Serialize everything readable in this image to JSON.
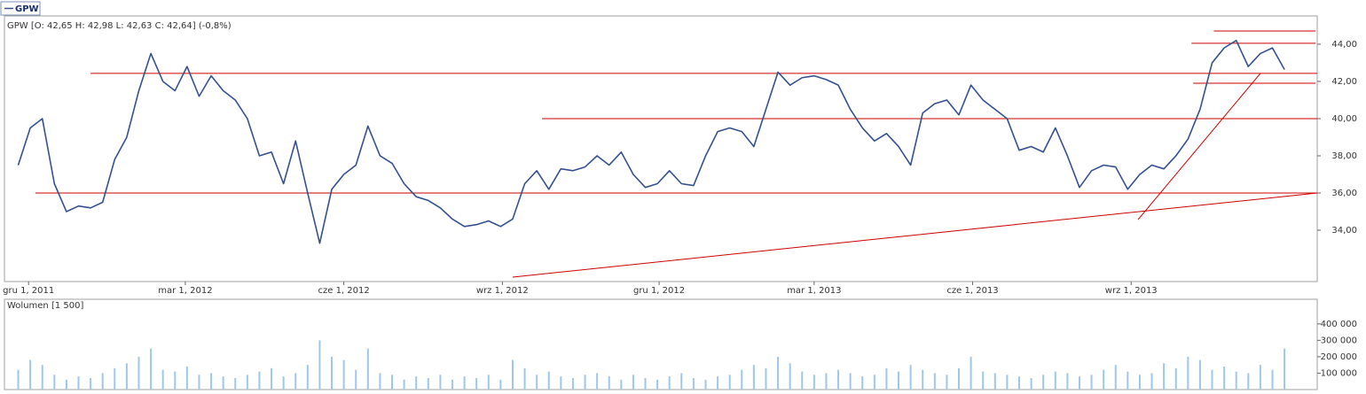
{
  "chart_data": [
    {
      "type": "line",
      "title": "GPW [O: 42,65  H: 42,98  L: 42,63  C: 42,64] (-0,8%)",
      "x": [
        "2011-11-25",
        "2011-12-02",
        "2011-12-09",
        "2011-12-16",
        "2011-12-23",
        "2011-12-30",
        "2012-01-06",
        "2012-01-13",
        "2012-01-20",
        "2012-01-27",
        "2012-02-03",
        "2012-02-10",
        "2012-02-17",
        "2012-02-24",
        "2012-03-02",
        "2012-03-09",
        "2012-03-16",
        "2012-03-23",
        "2012-03-30",
        "2012-04-06",
        "2012-04-13",
        "2012-04-20",
        "2012-04-27",
        "2012-05-04",
        "2012-05-11",
        "2012-05-18",
        "2012-05-25",
        "2012-06-01",
        "2012-06-08",
        "2012-06-15",
        "2012-06-22",
        "2012-06-29",
        "2012-07-06",
        "2012-07-13",
        "2012-07-20",
        "2012-07-27",
        "2012-08-03",
        "2012-08-10",
        "2012-08-17",
        "2012-08-24",
        "2012-08-31",
        "2012-09-07",
        "2012-09-14",
        "2012-09-21",
        "2012-09-28",
        "2012-10-05",
        "2012-10-12",
        "2012-10-19",
        "2012-10-26",
        "2012-11-02",
        "2012-11-09",
        "2012-11-16",
        "2012-11-23",
        "2012-11-30",
        "2012-12-07",
        "2012-12-14",
        "2012-12-21",
        "2012-12-28",
        "2013-01-04",
        "2013-01-11",
        "2013-01-18",
        "2013-01-25",
        "2013-02-01",
        "2013-02-08",
        "2013-02-15",
        "2013-02-22",
        "2013-03-01",
        "2013-03-08",
        "2013-03-15",
        "2013-03-22",
        "2013-03-29",
        "2013-04-05",
        "2013-04-12",
        "2013-04-19",
        "2013-04-26",
        "2013-05-03",
        "2013-05-10",
        "2013-05-17",
        "2013-05-24",
        "2013-05-31",
        "2013-06-07",
        "2013-06-14",
        "2013-06-21",
        "2013-06-28",
        "2013-07-05",
        "2013-07-12",
        "2013-07-19",
        "2013-07-26",
        "2013-08-02",
        "2013-08-09",
        "2013-08-16",
        "2013-08-23",
        "2013-08-30",
        "2013-09-06",
        "2013-09-13",
        "2013-09-20",
        "2013-09-27",
        "2013-10-04",
        "2013-10-11",
        "2013-10-18",
        "2013-10-25",
        "2013-11-01",
        "2013-11-08",
        "2013-11-15",
        "2013-11-22",
        "2013-11-29"
      ],
      "series": [
        {
          "name": "GPW",
          "color": "#34508f",
          "values": [
            37.5,
            39.5,
            40.0,
            36.5,
            35.0,
            35.3,
            35.2,
            35.5,
            37.8,
            39.0,
            41.5,
            43.5,
            42.0,
            41.5,
            42.8,
            41.2,
            42.3,
            41.5,
            41.0,
            40.0,
            38.0,
            38.2,
            36.5,
            38.8,
            36.0,
            33.3,
            36.2,
            37.0,
            37.5,
            39.6,
            38.0,
            37.6,
            36.5,
            35.8,
            35.6,
            35.2,
            34.6,
            34.2,
            34.3,
            34.5,
            34.2,
            34.6,
            36.5,
            37.2,
            36.2,
            37.3,
            37.2,
            37.4,
            38.0,
            37.5,
            38.2,
            37.0,
            36.3,
            36.5,
            37.2,
            36.5,
            36.4,
            38.0,
            39.3,
            39.5,
            39.3,
            38.5,
            40.5,
            42.5,
            41.8,
            42.2,
            42.3,
            42.1,
            41.8,
            40.5,
            39.5,
            38.8,
            39.2,
            38.5,
            37.5,
            40.3,
            40.8,
            41.0,
            40.2,
            41.8,
            41.0,
            40.5,
            40.0,
            38.3,
            38.5,
            38.2,
            39.5,
            38.0,
            36.3,
            37.2,
            37.5,
            37.4,
            36.2,
            37.0,
            37.5,
            37.3,
            38.0,
            38.9,
            40.5,
            43.0,
            43.8,
            44.2,
            42.8,
            43.5,
            43.8,
            42.64
          ]
        }
      ],
      "xlim": [
        "2011-11-17",
        "2013-12-18"
      ],
      "xticks": [
        {
          "value": "2011-12-01",
          "label": "gru 1, 2011"
        },
        {
          "value": "2012-03-01",
          "label": "mar 1, 2012"
        },
        {
          "value": "2012-06-01",
          "label": "cze 1, 2012"
        },
        {
          "value": "2012-09-01",
          "label": "wrz 1, 2012"
        },
        {
          "value": "2012-12-01",
          "label": "gru 1, 2012"
        },
        {
          "value": "2013-03-01",
          "label": "mar 1, 2013"
        },
        {
          "value": "2013-06-01",
          "label": "cze 1, 2013"
        },
        {
          "value": "2013-09-01",
          "label": "wrz 1, 2013"
        }
      ],
      "ylim": [
        31.24,
        45.52
      ],
      "yticks": [
        {
          "value": 34,
          "label": "34,00"
        },
        {
          "value": 36,
          "label": "36,00"
        },
        {
          "value": 38,
          "label": "38,00"
        },
        {
          "value": 40,
          "label": "40,00"
        },
        {
          "value": 42,
          "label": "42,00"
        },
        {
          "value": 44,
          "label": "44,00"
        }
      ],
      "line_color": "#cc0000",
      "lines": [
        {
          "x": [
            "2012-01-06",
            "2013-12-18"
          ],
          "y": [
            42.43,
            42.43
          ]
        },
        {
          "x": [
            "2012-09-24",
            "2013-12-18"
          ],
          "y": [
            40.0,
            40.0
          ]
        },
        {
          "x": [
            "2011-12-05",
            "2013-12-18"
          ],
          "y": [
            36.0,
            36.0
          ]
        },
        {
          "x": [
            "2013-10-07",
            "2013-12-17"
          ],
          "y": [
            41.9,
            41.9
          ]
        },
        {
          "x": [
            "2013-10-06",
            "2013-12-17"
          ],
          "y": [
            44.05,
            44.05
          ]
        },
        {
          "x": [
            "2013-10-19",
            "2013-12-17"
          ],
          "y": [
            44.71,
            44.71
          ]
        },
        {
          "x": [
            "2012-09-07",
            "2013-12-18"
          ],
          "y": [
            31.48,
            36.0
          ]
        },
        {
          "x": [
            "2013-09-05",
            "2013-11-15"
          ],
          "y": [
            34.57,
            42.43
          ]
        }
      ]
    },
    {
      "type": "bar",
      "title": "Wolumen [1 500]",
      "x": [
        "2011-11-25",
        "2011-12-02",
        "2011-12-09",
        "2011-12-16",
        "2011-12-23",
        "2011-12-30",
        "2012-01-06",
        "2012-01-13",
        "2012-01-20",
        "2012-01-27",
        "2012-02-03",
        "2012-02-10",
        "2012-02-17",
        "2012-02-24",
        "2012-03-02",
        "2012-03-09",
        "2012-03-16",
        "2012-03-23",
        "2012-03-30",
        "2012-04-06",
        "2012-04-13",
        "2012-04-20",
        "2012-04-27",
        "2012-05-04",
        "2012-05-11",
        "2012-05-18",
        "2012-05-25",
        "2012-06-01",
        "2012-06-08",
        "2012-06-15",
        "2012-06-22",
        "2012-06-29",
        "2012-07-06",
        "2012-07-13",
        "2012-07-20",
        "2012-07-27",
        "2012-08-03",
        "2012-08-10",
        "2012-08-17",
        "2012-08-24",
        "2012-08-31",
        "2012-09-07",
        "2012-09-14",
        "2012-09-21",
        "2012-09-28",
        "2012-10-05",
        "2012-10-12",
        "2012-10-19",
        "2012-10-26",
        "2012-11-02",
        "2012-11-09",
        "2012-11-16",
        "2012-11-23",
        "2012-11-30",
        "2012-12-07",
        "2012-12-14",
        "2012-12-21",
        "2012-12-28",
        "2013-01-04",
        "2013-01-11",
        "2013-01-18",
        "2013-01-25",
        "2013-02-01",
        "2013-02-08",
        "2013-02-15",
        "2013-02-22",
        "2013-03-01",
        "2013-03-08",
        "2013-03-15",
        "2013-03-22",
        "2013-03-29",
        "2013-04-05",
        "2013-04-12",
        "2013-04-19",
        "2013-04-26",
        "2013-05-03",
        "2013-05-10",
        "2013-05-17",
        "2013-05-24",
        "2013-05-31",
        "2013-06-07",
        "2013-06-14",
        "2013-06-21",
        "2013-06-28",
        "2013-07-05",
        "2013-07-12",
        "2013-07-19",
        "2013-07-26",
        "2013-08-02",
        "2013-08-09",
        "2013-08-16",
        "2013-08-23",
        "2013-08-30",
        "2013-09-06",
        "2013-09-13",
        "2013-09-20",
        "2013-09-27",
        "2013-10-04",
        "2013-10-11",
        "2013-10-18",
        "2013-10-25",
        "2013-11-01",
        "2013-11-08",
        "2013-11-15",
        "2013-11-22",
        "2013-11-29"
      ],
      "color": "#9fc7e8",
      "values": [
        120000,
        180000,
        150000,
        90000,
        60000,
        80000,
        70000,
        100000,
        130000,
        160000,
        200000,
        250000,
        120000,
        110000,
        140000,
        90000,
        100000,
        80000,
        70000,
        90000,
        110000,
        130000,
        80000,
        100000,
        150000,
        300000,
        200000,
        180000,
        120000,
        250000,
        100000,
        90000,
        60000,
        80000,
        70000,
        90000,
        60000,
        80000,
        70000,
        90000,
        60000,
        180000,
        130000,
        90000,
        110000,
        80000,
        70000,
        90000,
        100000,
        80000,
        60000,
        90000,
        70000,
        60000,
        80000,
        100000,
        70000,
        60000,
        80000,
        90000,
        120000,
        150000,
        130000,
        200000,
        160000,
        110000,
        90000,
        100000,
        120000,
        100000,
        80000,
        90000,
        130000,
        110000,
        150000,
        120000,
        100000,
        90000,
        130000,
        200000,
        110000,
        100000,
        90000,
        80000,
        70000,
        90000,
        110000,
        100000,
        80000,
        90000,
        120000,
        150000,
        110000,
        90000,
        100000,
        160000,
        130000,
        200000,
        180000,
        120000,
        140000,
        110000,
        100000,
        150000,
        120000,
        250000
      ],
      "xlim": [
        "2011-11-17",
        "2013-12-18"
      ],
      "ylim": [
        0,
        550000
      ],
      "yticks": [
        {
          "value": 100000,
          "label": "100 000"
        },
        {
          "value": 200000,
          "label": "200 000"
        },
        {
          "value": 300000,
          "label": "300 000"
        },
        {
          "value": 400000,
          "label": "400 000"
        }
      ]
    }
  ]
}
